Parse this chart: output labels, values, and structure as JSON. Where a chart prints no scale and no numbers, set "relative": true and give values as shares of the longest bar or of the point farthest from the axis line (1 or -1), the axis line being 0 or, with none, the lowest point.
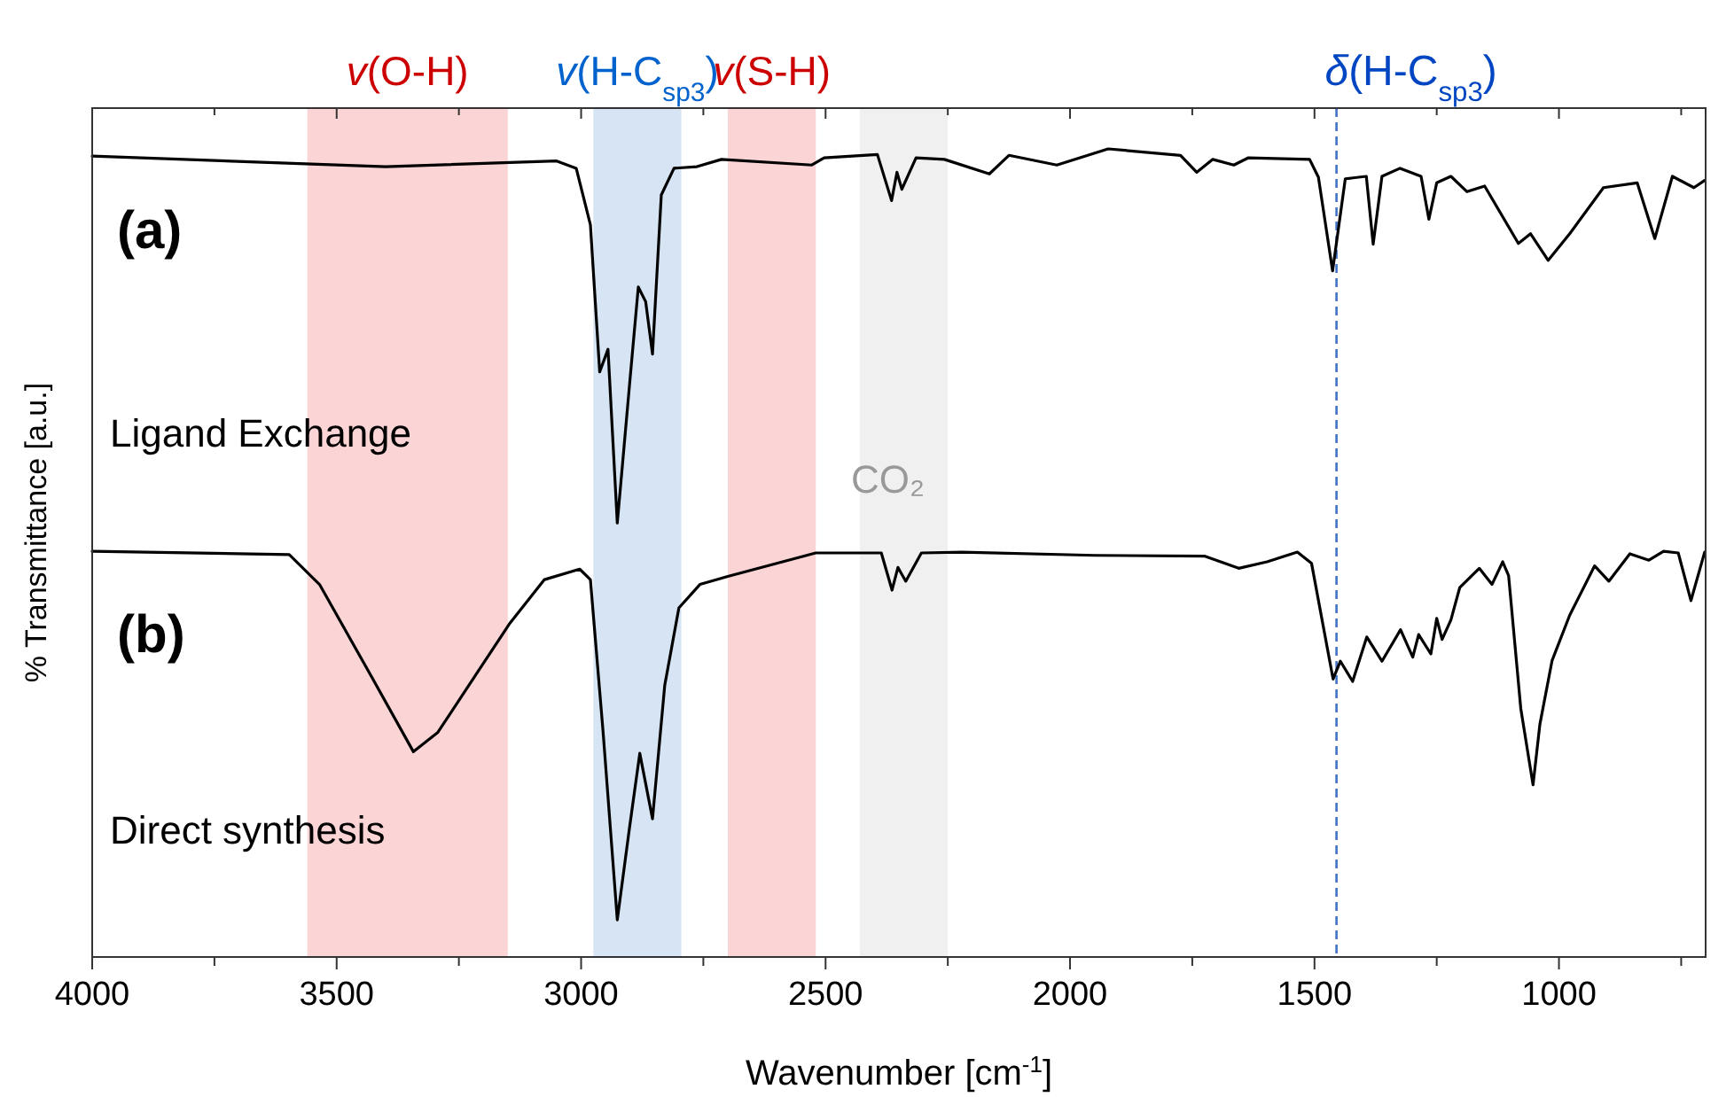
{
  "chart_data": {
    "type": "line",
    "relative": true,
    "xlabel": "Wavenumber [cm$^{-1}$]",
    "ylabel": "% Transmittance [a.u.]",
    "xlim": [
      4000,
      700
    ],
    "xticks": [
      4000,
      {
        "value": 3750,
        "label": null
      },
      3500,
      {
        "value": 3250,
        "label": null
      },
      3000,
      {
        "value": 2750,
        "label": null
      },
      2500,
      {
        "value": 2250,
        "label": null
      },
      2000,
      {
        "value": 1750,
        "label": null
      },
      1500,
      {
        "value": 1250,
        "label": null
      },
      1000,
      {
        "value": 750,
        "label": null
      }
    ],
    "series": [
      {
        "color": "#000000",
        "x": [
          4000,
          3400,
          3050,
          3010,
          2981,
          2962,
          2945,
          2926,
          2901,
          2883,
          2868,
          2854,
          2836,
          2810,
          2763,
          2713,
          2528,
          2503,
          2394,
          2365,
          2354,
          2344,
          2315,
          2257,
          2165,
          2125,
          2027,
          1922,
          1774,
          1741,
          1708,
          1665,
          1635,
          1510,
          1492,
          1463,
          1437,
          1394,
          1380,
          1362,
          1325,
          1282,
          1266,
          1250,
          1221,
          1188,
          1152,
          1083,
          1058,
          1022,
          978,
          909,
          840,
          804,
          768,
          724,
          702
        ],
        "values": [
          0.991,
          0.978,
          0.985,
          0.976,
          0.906,
          0.724,
          0.752,
          0.537,
          0.708,
          0.829,
          0.811,
          0.746,
          0.943,
          0.976,
          0.978,
          0.987,
          0.98,
          0.989,
          0.993,
          0.936,
          0.971,
          0.95,
          0.989,
          0.987,
          0.969,
          0.992,
          0.98,
          1,
          0.992,
          0.971,
          0.987,
          0.98,
          0.989,
          0.987,
          0.965,
          0.849,
          0.963,
          0.966,
          0.882,
          0.966,
          0.976,
          0.966,
          0.913,
          0.958,
          0.966,
          0.947,
          0.954,
          0.883,
          0.895,
          0.862,
          0.895,
          0.952,
          0.958,
          0.889,
          0.966,
          0.952,
          0.961
        ]
      },
      {
        "color": "#000000",
        "x": [
          4000,
          3597,
          3535,
          3438,
          3343,
          3293,
          3147,
          3075,
          3003,
          2981,
          2955,
          2926,
          2901,
          2880,
          2854,
          2829,
          2800,
          2757,
          2700,
          2520,
          2386,
          2364,
          2352,
          2336,
          2304,
          2221,
          1949,
          1724,
          1655,
          1597,
          1535,
          1506,
          1462,
          1447,
          1422,
          1393,
          1362,
          1324,
          1299,
          1287,
          1262,
          1250,
          1239,
          1221,
          1203,
          1163,
          1137,
          1115,
          1103,
          1078,
          1053,
          1039,
          1014,
          978,
          927,
          898,
          855,
          816,
          786,
          756,
          730,
          702
        ],
        "values": [
          0.502,
          0.498,
          0.461,
          0.357,
          0.254,
          0.278,
          0.412,
          0.467,
          0.48,
          0.467,
          0.278,
          0.046,
          0.16,
          0.252,
          0.171,
          0.336,
          0.432,
          0.461,
          0.471,
          0.5,
          0.5,
          0.454,
          0.482,
          0.465,
          0.5,
          0.501,
          0.497,
          0.496,
          0.481,
          0.489,
          0.501,
          0.487,
          0.344,
          0.366,
          0.341,
          0.396,
          0.366,
          0.405,
          0.371,
          0.399,
          0.375,
          0.419,
          0.393,
          0.417,
          0.457,
          0.481,
          0.461,
          0.489,
          0.472,
          0.307,
          0.213,
          0.288,
          0.367,
          0.423,
          0.484,
          0.465,
          0.499,
          0.491,
          0.502,
          0.5,
          0.441,
          0.501
        ]
      }
    ],
    "bands": [
      {
        "axis": "x",
        "from": 3560,
        "to": 3150,
        "label": "v(O-H)",
        "color": "#fbd5d5"
      },
      {
        "axis": "x",
        "from": 2975,
        "to": 2795,
        "label": "v(H-C$_{sp3}$)",
        "color": "#d6e4f3"
      },
      {
        "axis": "x",
        "from": 2700,
        "to": 2520,
        "label": "v(S-H)",
        "color": "#fbd5d5"
      },
      {
        "axis": "x",
        "from": 2430,
        "to": 2250,
        "color": "#f0f0f0"
      }
    ],
    "ref_lines": [
      {
        "axis": "x",
        "value": 1455,
        "label": "δ(H-C$_{sp3}$)",
        "color": "#4472c4",
        "line_style": "dashed"
      }
    ],
    "annotations": [
      "(a)",
      "Ligand Exchange",
      "(b)",
      "Direct synthesis",
      "CO₂"
    ]
  }
}
